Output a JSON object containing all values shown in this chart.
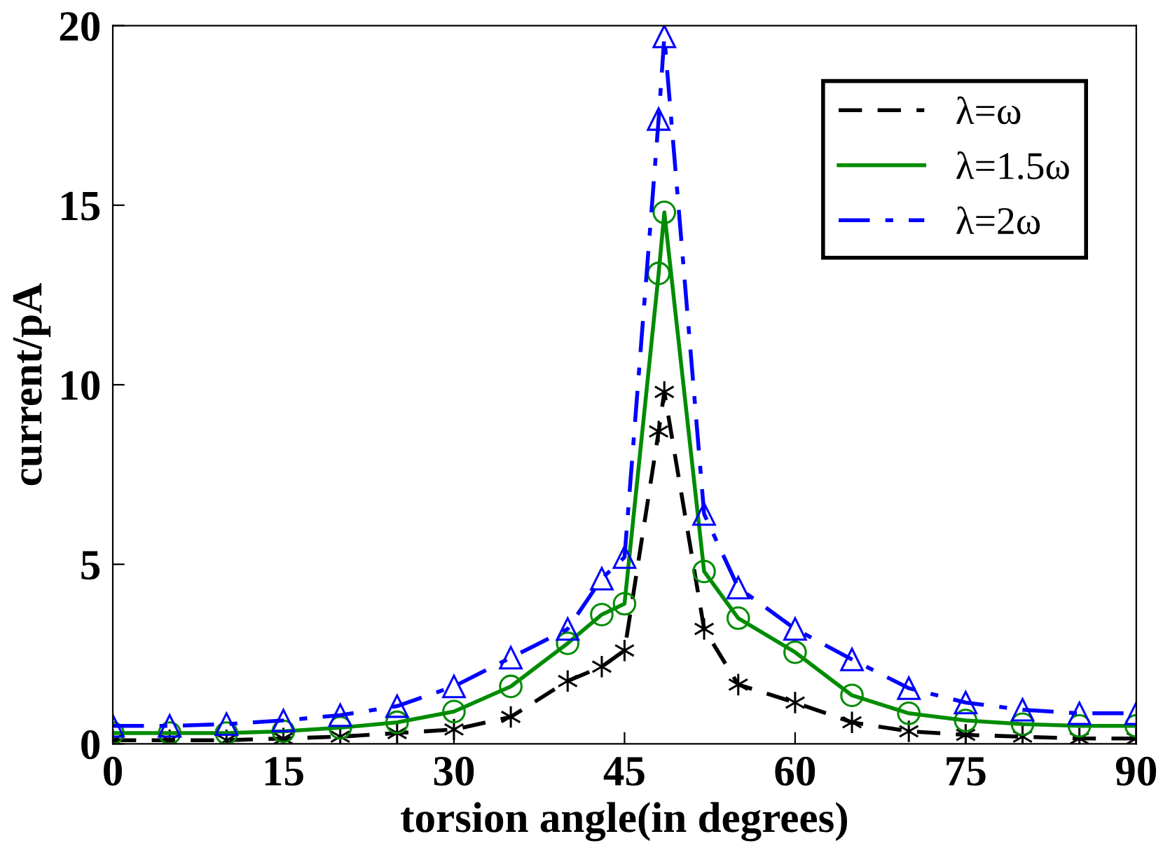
{
  "chart_data": {
    "type": "line",
    "xlabel": "torsion angle(in degrees)",
    "ylabel": "current/pA",
    "x": [
      0,
      5,
      10,
      15,
      20,
      25,
      30,
      35,
      40,
      43,
      45,
      48,
      48.5,
      52,
      55,
      60,
      65,
      70,
      75,
      80,
      85,
      90
    ],
    "series": [
      {
        "name": "λ=ω",
        "color": "#000000",
        "line_style": "dashed",
        "marker": "cross",
        "values": [
          0.1,
          0.1,
          0.1,
          0.15,
          0.2,
          0.3,
          0.4,
          0.75,
          1.75,
          2.15,
          2.6,
          8.7,
          9.8,
          3.2,
          1.65,
          1.15,
          0.6,
          0.35,
          0.25,
          0.2,
          0.15,
          0.15
        ]
      },
      {
        "name": "λ=1.5ω",
        "color": "#008c00",
        "line_style": "solid",
        "marker": "circle",
        "values": [
          0.3,
          0.3,
          0.3,
          0.35,
          0.45,
          0.6,
          0.9,
          1.6,
          2.8,
          3.6,
          3.9,
          13.1,
          14.8,
          4.8,
          3.5,
          2.55,
          1.35,
          0.85,
          0.65,
          0.55,
          0.5,
          0.5
        ]
      },
      {
        "name": "λ=2ω",
        "color": "#0000ff",
        "line_style": "dashdot",
        "marker": "triangle",
        "values": [
          0.5,
          0.5,
          0.55,
          0.65,
          0.8,
          1.05,
          1.6,
          2.4,
          3.2,
          4.6,
          5.2,
          17.4,
          19.7,
          6.4,
          4.35,
          3.2,
          2.35,
          1.55,
          1.15,
          0.95,
          0.85,
          0.85
        ]
      }
    ],
    "xlim": [
      0,
      90
    ],
    "xticks": [
      0,
      15,
      30,
      45,
      60,
      75,
      90
    ],
    "ylim": [
      0,
      20
    ],
    "yticks": [
      0,
      5,
      10,
      15,
      20
    ],
    "grid": false,
    "legend": "top right"
  }
}
